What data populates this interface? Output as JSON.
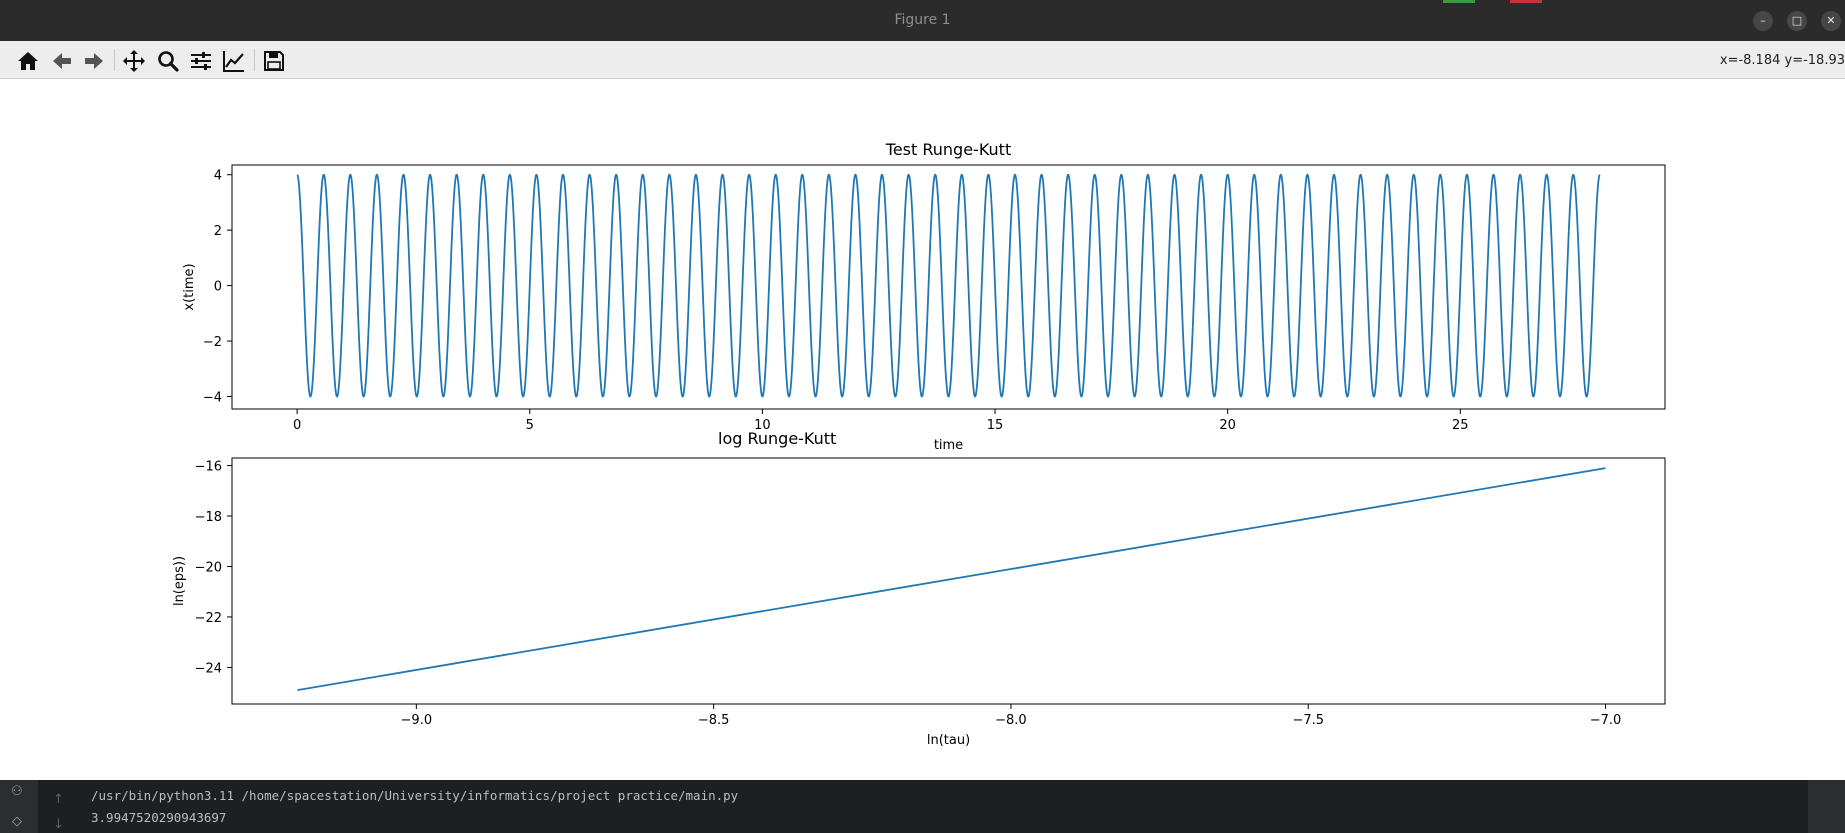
{
  "window": {
    "title": "Figure 1",
    "controls": {
      "minimize": "–",
      "maximize": "□",
      "close": "✕"
    }
  },
  "toolbar": {
    "buttons": [
      "home-icon",
      "back-icon",
      "forward-icon",
      "pan-icon",
      "zoom-icon",
      "configure-subplots-icon",
      "edit-axis-icon",
      "save-icon"
    ],
    "coords": "x=-8.184 y=-18.93"
  },
  "figure": {
    "top": {
      "ytick_labels": [
        "4",
        "2",
        "0",
        "−2",
        "−4"
      ]
    }
  },
  "chart_data": [
    {
      "type": "line",
      "title": "Test Runge-Kutt",
      "xlabel": "time",
      "ylabel": "x(time)",
      "xlim": [
        -1.4,
        29.4
      ],
      "ylim": [
        -4.45,
        4.35
      ],
      "xticks": [
        0,
        5,
        10,
        15,
        20,
        25
      ],
      "xtick_labels": [
        "0",
        "5",
        "10",
        "15",
        "20",
        "25"
      ],
      "yticks": [
        4,
        2,
        0,
        -2,
        -4
      ],
      "ytick_labels": [
        "4",
        "2",
        "0",
        "−2",
        "−4"
      ],
      "series": [
        {
          "function": "4*cos(omega*t)",
          "x_range": [
            0,
            28
          ],
          "amplitude": 4,
          "cycles": 49,
          "color": "#1f77b4"
        }
      ]
    },
    {
      "type": "line",
      "title": "",
      "annotation": "log Runge-Kutt",
      "xlabel": "ln(tau)",
      "ylabel": "ln(eps))",
      "xlim": [
        -9.31,
        -6.9
      ],
      "ylim": [
        -25.45,
        -15.7
      ],
      "xticks": [
        -9.0,
        -8.5,
        -8.0,
        -7.5,
        -7.0
      ],
      "xtick_labels": [
        "−9.0",
        "−8.5",
        "−8.0",
        "−7.5",
        "−7.0"
      ],
      "yticks": [
        -16,
        -18,
        -20,
        -22,
        -24
      ],
      "ytick_labels": [
        "−16",
        "−18",
        "−20",
        "−22",
        "−24"
      ],
      "series": [
        {
          "x": [
            -9.2,
            -7.0
          ],
          "y": [
            -24.9,
            -16.1
          ],
          "color": "#1f77b4"
        }
      ]
    }
  ],
  "console": {
    "lines": [
      "/usr/bin/python3.11 /home/spacestation/University/informatics/project practice/main.py",
      "3.9947520290943697"
    ]
  }
}
